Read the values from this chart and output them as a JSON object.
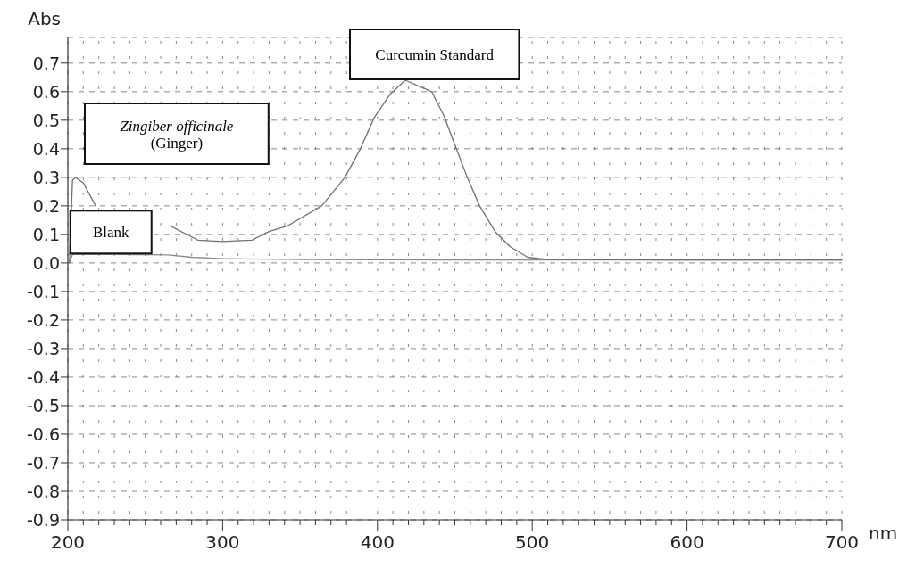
{
  "chart_data": {
    "type": "line",
    "xlabel": "nm",
    "ylabel": "Abs",
    "xlim": [
      200,
      700
    ],
    "ylim": [
      -0.9,
      0.79
    ],
    "xticks": [
      200,
      {
        "value": 210,
        "label": null
      },
      {
        "value": 220,
        "label": null
      },
      {
        "value": 230,
        "label": null
      },
      {
        "value": 240,
        "label": null
      },
      {
        "value": 250,
        "label": null
      },
      {
        "value": 260,
        "label": null
      },
      {
        "value": 270,
        "label": null
      },
      {
        "value": 280,
        "label": null
      },
      {
        "value": 290,
        "label": null
      },
      300,
      {
        "value": 310,
        "label": null
      },
      {
        "value": 320,
        "label": null
      },
      {
        "value": 330,
        "label": null
      },
      {
        "value": 340,
        "label": null
      },
      {
        "value": 350,
        "label": null
      },
      {
        "value": 360,
        "label": null
      },
      {
        "value": 370,
        "label": null
      },
      {
        "value": 380,
        "label": null
      },
      {
        "value": 390,
        "label": null
      },
      400,
      {
        "value": 410,
        "label": null
      },
      {
        "value": 420,
        "label": null
      },
      {
        "value": 430,
        "label": null
      },
      {
        "value": 440,
        "label": null
      },
      {
        "value": 450,
        "label": null
      },
      {
        "value": 460,
        "label": null
      },
      {
        "value": 470,
        "label": null
      },
      {
        "value": 480,
        "label": null
      },
      {
        "value": 490,
        "label": null
      },
      500,
      {
        "value": 510,
        "label": null
      },
      {
        "value": 520,
        "label": null
      },
      {
        "value": 530,
        "label": null
      },
      {
        "value": 540,
        "label": null
      },
      {
        "value": 550,
        "label": null
      },
      {
        "value": 560,
        "label": null
      },
      {
        "value": 570,
        "label": null
      },
      {
        "value": 580,
        "label": null
      },
      {
        "value": 590,
        "label": null
      },
      600,
      {
        "value": 610,
        "label": null
      },
      {
        "value": 620,
        "label": null
      },
      {
        "value": 630,
        "label": null
      },
      {
        "value": 640,
        "label": null
      },
      {
        "value": 650,
        "label": null
      },
      {
        "value": 660,
        "label": null
      },
      {
        "value": 670,
        "label": null
      },
      {
        "value": 680,
        "label": null
      },
      {
        "value": 690,
        "label": null
      },
      700
    ],
    "yticks": [
      -0.9,
      -0.8,
      -0.7,
      -0.6,
      -0.5,
      -0.4,
      -0.3,
      -0.2,
      -0.1,
      {
        "value": 0,
        "label": "0.0"
      },
      0.1,
      0.2,
      0.3,
      0.4,
      0.5,
      0.6,
      0.7
    ],
    "grid": true,
    "line_style": "solid",
    "series": [
      {
        "name": "Blank",
        "color": "#8a8a8a",
        "x": [
          201,
          203,
          230,
          265,
          280,
          300,
          350,
          400,
          500,
          600,
          700
        ],
        "values": [
          0.0,
          0.03,
          0.03,
          0.028,
          0.02,
          0.015,
          0.012,
          0.011,
          0.01,
          0.01,
          0.01
        ]
      },
      {
        "color": "#707070",
        "x": [
          201,
          203,
          205,
          210,
          218,
          230,
          250,
          266,
          284,
          300,
          319,
          330,
          342,
          364,
          379,
          389,
          398,
          408,
          418,
          435,
          443,
          451,
          458,
          466,
          476,
          486,
          497,
          510,
          600,
          700
        ],
        "values": [
          0.0,
          0.29,
          0.3,
          0.28,
          0.2,
          null,
          null,
          0.13,
          0.08,
          0.075,
          0.08,
          0.11,
          0.13,
          0.2,
          0.3,
          0.4,
          0.51,
          0.59,
          0.64,
          0.6,
          0.515,
          0.4,
          0.3,
          0.2,
          0.11,
          0.056,
          0.02,
          0.012,
          0.01,
          0.01
        ]
      }
    ],
    "annotations": [
      "Zingiber officinale\n(Ginger)",
      "Curcumin Standard"
    ]
  }
}
